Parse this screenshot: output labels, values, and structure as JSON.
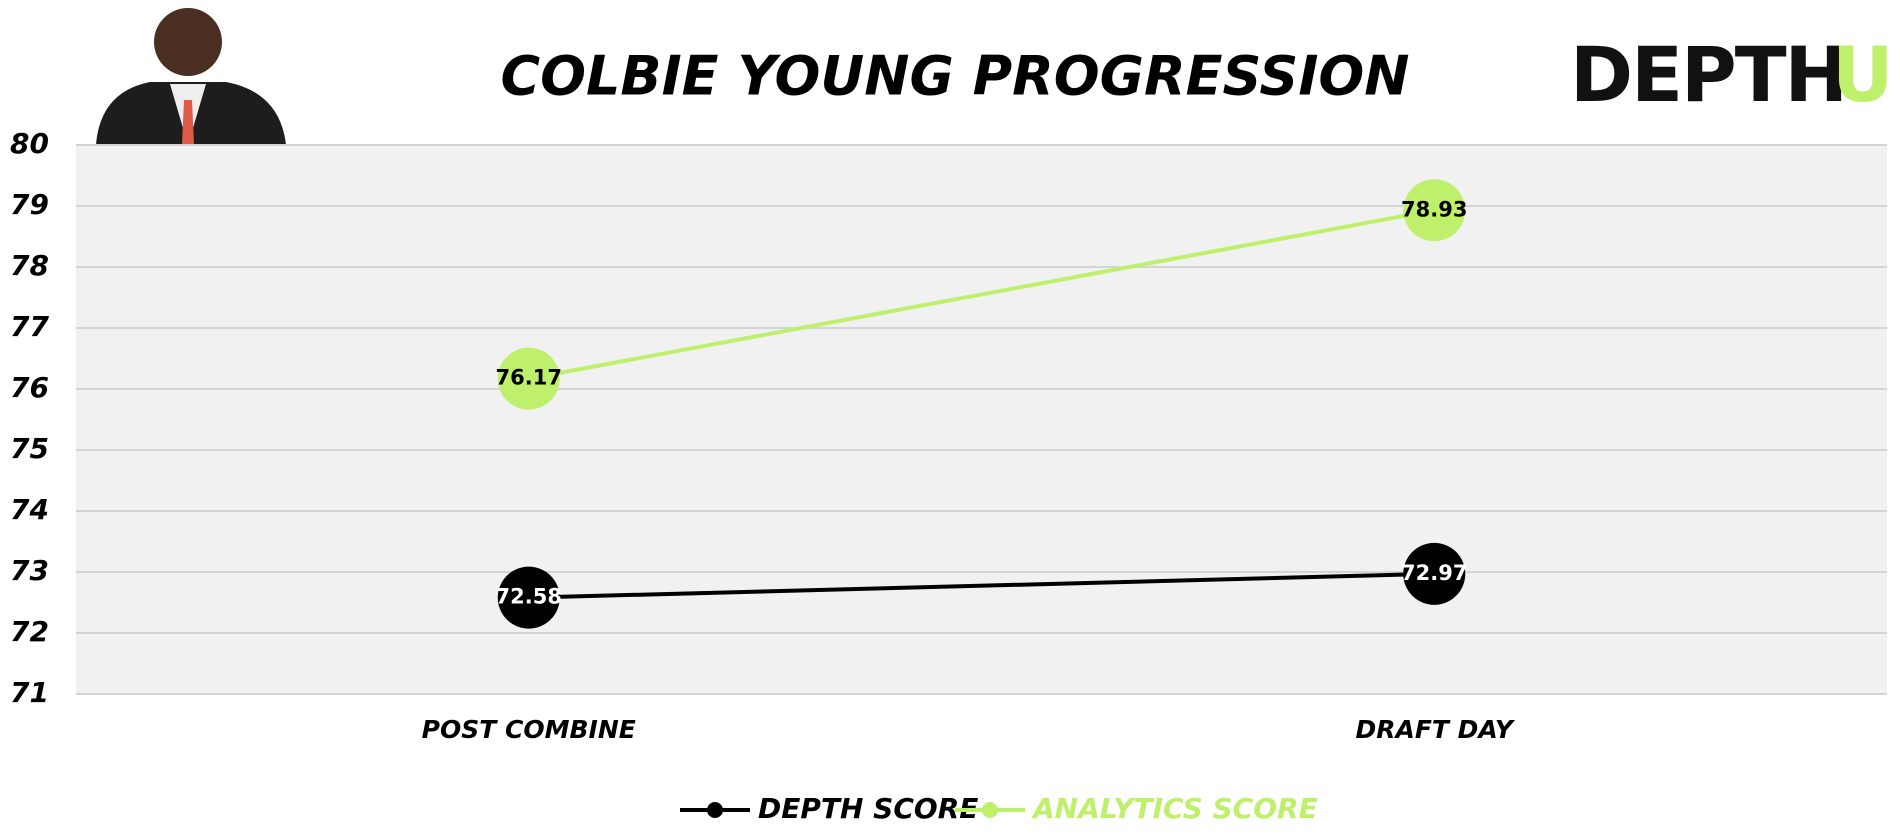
{
  "chart_data": {
    "type": "line",
    "title": "COLBIE YOUNG PROGRESSION",
    "logo": [
      "DEPTH",
      "U"
    ],
    "categories": [
      "POST COMBINE",
      "DRAFT DAY"
    ],
    "series": [
      {
        "name": "DEPTH SCORE",
        "color": "#000000",
        "values": [
          72.58,
          72.97
        ]
      },
      {
        "name": "ANALYTICS SCORE",
        "color": "#bff06c",
        "values": [
          76.17,
          78.93
        ]
      }
    ],
    "ylim": [
      71,
      80
    ],
    "yticks": [
      71,
      72,
      73,
      74,
      75,
      76,
      77,
      78,
      79,
      80
    ],
    "grid": true
  }
}
